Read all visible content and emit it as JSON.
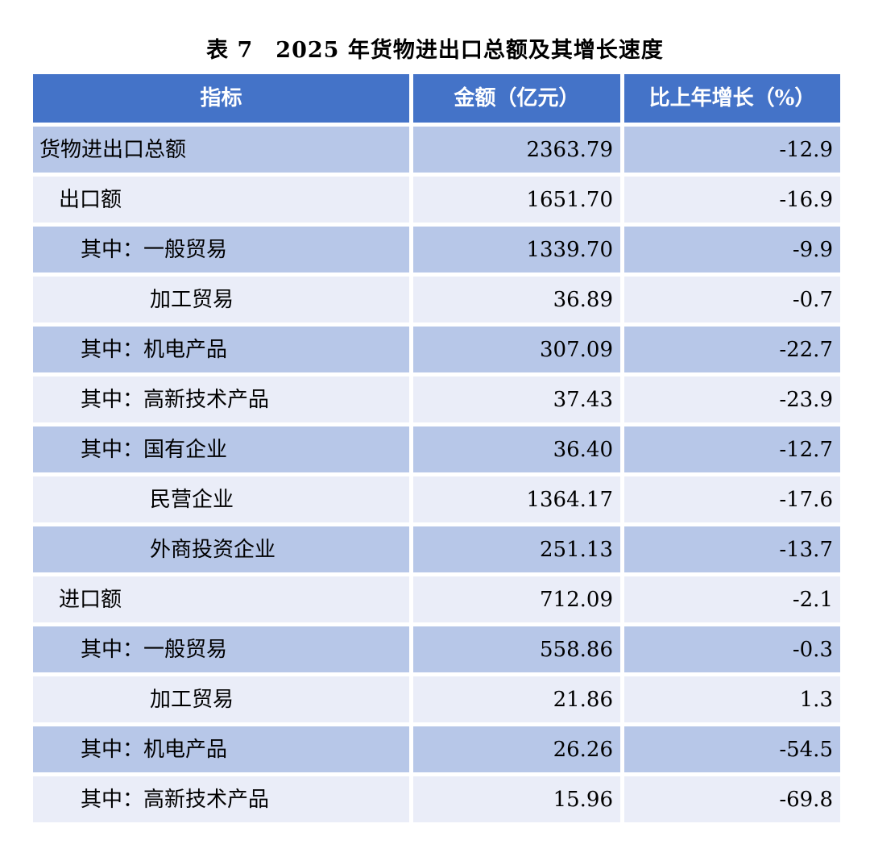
{
  "title": "表 7　2025 年货物进出口总额及其增长速度",
  "colors": {
    "header_bg": "#4473C8",
    "header_text": "#FFFFFF",
    "band_dark": "#B7C7E8",
    "band_light": "#EAEDF8",
    "gap": "#FFFFFF",
    "text": "#000000"
  },
  "table": {
    "headers": [
      "指标",
      "金额（亿元）",
      "比上年增长（%）"
    ],
    "rows": [
      {
        "indicator": "货物进出口总额",
        "indent": 0,
        "amount": "2363.79",
        "growth": "-12.9"
      },
      {
        "indicator": "出口额",
        "indent": 1,
        "amount": "1651.70",
        "growth": "-16.9"
      },
      {
        "indicator": "其中：一般贸易",
        "indent": 2,
        "amount": "1339.70",
        "growth": "-9.9"
      },
      {
        "indicator": "加工贸易",
        "indent": 3,
        "amount": "36.89",
        "growth": "-0.7"
      },
      {
        "indicator": "其中：机电产品",
        "indent": 2,
        "amount": "307.09",
        "growth": "-22.7"
      },
      {
        "indicator": "其中：高新技术产品",
        "indent": 2,
        "amount": "37.43",
        "growth": "-23.9"
      },
      {
        "indicator": "其中：国有企业",
        "indent": 2,
        "amount": "36.40",
        "growth": "-12.7"
      },
      {
        "indicator": "民营企业",
        "indent": 3,
        "amount": "1364.17",
        "growth": "-17.6"
      },
      {
        "indicator": "外商投资企业",
        "indent": 3,
        "amount": "251.13",
        "growth": "-13.7"
      },
      {
        "indicator": "进口额",
        "indent": 1,
        "amount": "712.09",
        "growth": "-2.1"
      },
      {
        "indicator": "其中：一般贸易",
        "indent": 2,
        "amount": "558.86",
        "growth": "-0.3"
      },
      {
        "indicator": "加工贸易",
        "indent": 3,
        "amount": "21.86",
        "growth": "1.3"
      },
      {
        "indicator": "其中：机电产品",
        "indent": 2,
        "amount": "26.26",
        "growth": "-54.5"
      },
      {
        "indicator": "其中：高新技术产品",
        "indent": 2,
        "amount": "15.96",
        "growth": "-69.8"
      }
    ]
  }
}
